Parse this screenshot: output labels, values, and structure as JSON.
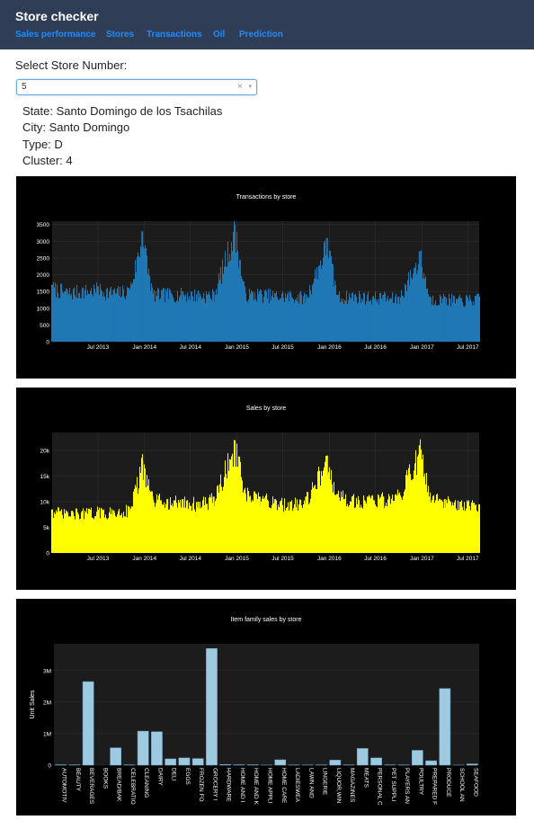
{
  "navbar": {
    "brand": "Store checker",
    "links": [
      "Sales performance",
      "Stores",
      "Transactions",
      "Oil",
      "Prediction"
    ],
    "background": "#2f3e56",
    "link_color": "#1e8cff"
  },
  "store_select": {
    "label": "Select Store Number:",
    "value": "5",
    "clear_glyph": "×",
    "arrow_glyph": "▾"
  },
  "store_info": {
    "state": "State: Santo Domingo de los Tsachilas",
    "city": "City: Santo Domingo",
    "type": "Type: D",
    "cluster": "Cluster: 4"
  },
  "chart_data": [
    {
      "type": "bar",
      "title": "Transactions by store",
      "color": "#1f77b4",
      "ylim": [
        0,
        3600
      ],
      "yticks": [
        0,
        500,
        1000,
        1500,
        2000,
        2500,
        3000,
        3500
      ],
      "ytick_labels": [
        "0",
        "500",
        "1000",
        "1500",
        "2000",
        "2500",
        "3000",
        "3500"
      ],
      "xrange": [
        "2013-01-01",
        "2017-08-15"
      ],
      "xticks": [
        "2013-07-01",
        "2014-01-01",
        "2014-07-01",
        "2015-01-01",
        "2015-07-01",
        "2016-01-01",
        "2016-07-01",
        "2017-01-01",
        "2017-07-01"
      ],
      "xtick_labels": [
        "Jul 2013",
        "Jan 2014",
        "Jul 2014",
        "Jan 2015",
        "Jul 2015",
        "Jan 2016",
        "Jul 2016",
        "Jan 2017",
        "Jul 2017"
      ],
      "x": [
        "2013-01-01",
        "2013-03-01",
        "2013-05-01",
        "2013-07-01",
        "2013-09-01",
        "2013-11-01",
        "2013-12-23",
        "2014-02-01",
        "2014-04-01",
        "2014-06-01",
        "2014-08-01",
        "2014-10-01",
        "2014-12-23",
        "2015-02-01",
        "2015-04-01",
        "2015-06-01",
        "2015-08-01",
        "2015-10-01",
        "2015-12-23",
        "2016-02-01",
        "2016-04-01",
        "2016-06-01",
        "2016-08-01",
        "2016-10-01",
        "2016-12-23",
        "2017-02-01",
        "2017-04-01",
        "2017-06-01",
        "2017-08-15"
      ],
      "values": [
        1700,
        1550,
        1600,
        1650,
        1550,
        1600,
        3300,
        1500,
        1500,
        1500,
        1480,
        1480,
        3500,
        1500,
        1500,
        1450,
        1450,
        1400,
        3100,
        1400,
        1450,
        1400,
        1400,
        1350,
        2700,
        1350,
        1350,
        1300,
        1350
      ]
    },
    {
      "type": "bar",
      "title": "Sales by store",
      "color": "#ffff00",
      "ylim": [
        0,
        23500
      ],
      "yticks": [
        0,
        5000,
        10000,
        15000,
        20000
      ],
      "ytick_labels": [
        "0",
        "5k",
        "10k",
        "15k",
        "20k"
      ],
      "xrange": [
        "2013-01-01",
        "2017-08-15"
      ],
      "xticks": [
        "2013-07-01",
        "2014-01-01",
        "2014-07-01",
        "2015-01-01",
        "2015-07-01",
        "2016-01-01",
        "2016-07-01",
        "2017-01-01",
        "2017-07-01"
      ],
      "xtick_labels": [
        "Jul 2013",
        "Jan 2014",
        "Jul 2014",
        "Jan 2015",
        "Jul 2015",
        "Jan 2016",
        "Jul 2016",
        "Jan 2017",
        "Jul 2017"
      ],
      "x": [
        "2013-01-01",
        "2013-03-01",
        "2013-05-01",
        "2013-07-01",
        "2013-09-01",
        "2013-11-01",
        "2013-12-23",
        "2014-02-01",
        "2014-04-01",
        "2014-06-01",
        "2014-08-01",
        "2014-10-01",
        "2014-12-23",
        "2015-02-01",
        "2015-04-01",
        "2015-06-01",
        "2015-08-01",
        "2015-10-01",
        "2015-12-23",
        "2016-02-01",
        "2016-04-01",
        "2016-06-01",
        "2016-08-01",
        "2016-10-01",
        "2016-12-23",
        "2017-02-01",
        "2017-04-01",
        "2017-06-01",
        "2017-08-15"
      ],
      "values": [
        8500,
        8000,
        8200,
        8400,
        8300,
        9000,
        18000,
        11000,
        10500,
        10500,
        10000,
        11000,
        22000,
        12000,
        11000,
        10500,
        10000,
        11000,
        19000,
        11500,
        11000,
        11000,
        11000,
        11500,
        21000,
        11000,
        10500,
        10000,
        9500
      ]
    },
    {
      "type": "bar",
      "title": "Item family sales by store",
      "color": "#9ecae1",
      "ylabel": "Unit Sales",
      "ylim": [
        0,
        3850000
      ],
      "yticks": [
        0,
        1000000,
        2000000,
        3000000
      ],
      "ytick_labels": [
        "0",
        "1M",
        "2M",
        "3M"
      ],
      "categories": [
        "AUTOMOTIV",
        "BEAUTY",
        "BEVERAGES",
        "BOOKS",
        "BREAD/BAK",
        "CELEBRATIO",
        "CLEANING",
        "DAIRY",
        "DELI",
        "EGGS",
        "FROZEN FO",
        "GROCERY I",
        "HARDWARE",
        "HOME AND I",
        "HOME AND K",
        "HOME APPLI",
        "HOME CARE",
        "LADIESWEA",
        "LAWN AND",
        "LINGERIE",
        "LIQUOR,WIN",
        "MAGAZINES",
        "MEATS",
        "PERSONAL C",
        "PET SUPPLI",
        "PLAYERS AN",
        "POULTRY",
        "PREPARED F",
        "PRODUCE",
        "SCHOOL AN",
        "SEAFOOD"
      ],
      "values": [
        15000,
        12000,
        2650000,
        0,
        550000,
        12000,
        1080000,
        1060000,
        200000,
        230000,
        210000,
        3700000,
        22000,
        15000,
        15000,
        3000,
        170000,
        9000,
        7000,
        11000,
        160000,
        11000,
        530000,
        230000,
        12000,
        10000,
        470000,
        140000,
        2430000,
        2000,
        40000
      ]
    }
  ]
}
